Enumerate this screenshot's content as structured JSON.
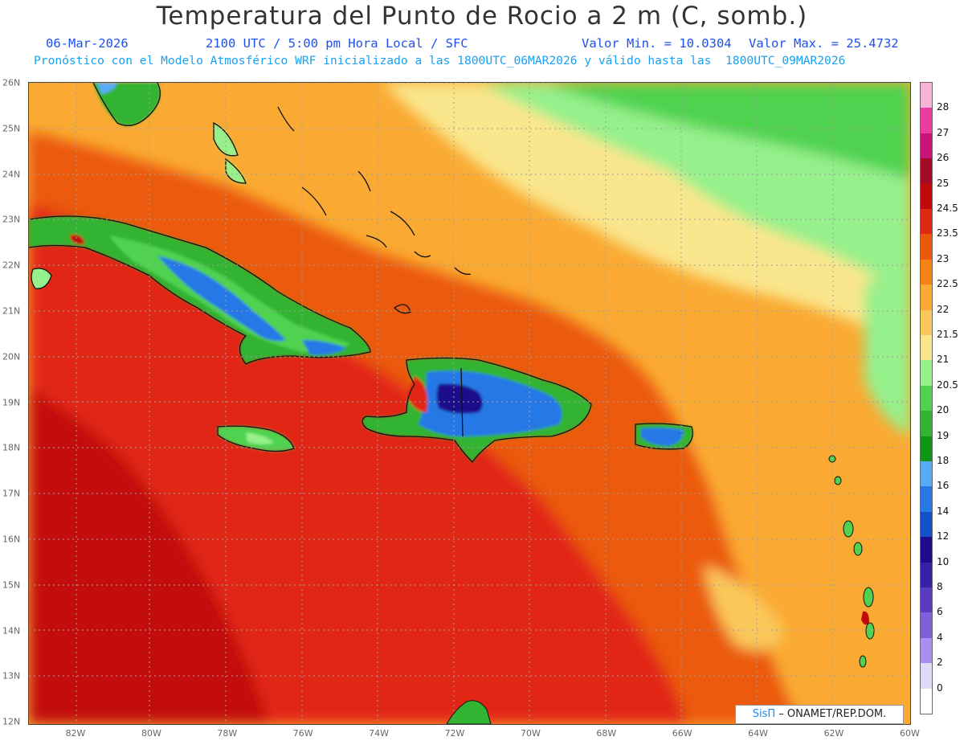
{
  "header": {
    "title": "Temperatura del Punto de Rocio a 2 m (C, somb.)",
    "date": "06-Mar-2026",
    "time_info": "2100 UTC / 5:00 pm Hora Local / SFC",
    "min_value": "Valor Min. = 10.0304",
    "max_value": "Valor Max. = 25.4732",
    "forecast_info": "Pronóstico con el Modelo Atmosférico WRF inicializado a las 1800UTC_06MAR2026 y válido hasta las  1800UTC_09MAR2026"
  },
  "colorbar": {
    "labels": [
      "0",
      "2",
      "4",
      "6",
      "8",
      "10",
      "12",
      "14",
      "16",
      "18",
      "19",
      "20",
      "20.5",
      "21",
      "21.5",
      "22",
      "22.5",
      "23",
      "23.5",
      "24.5",
      "25",
      "26",
      "27",
      "28"
    ],
    "colors": [
      "#ffffff",
      "#dcdcf8",
      "#a890f0",
      "#8060d8",
      "#5a3cc0",
      "#3820a8",
      "#1e0a8c",
      "#1450c8",
      "#2878e6",
      "#5aaaf5",
      "#0f9619",
      "#32b432",
      "#50d250",
      "#96f08c",
      "#fae68c",
      "#fac85a",
      "#faaa32",
      "#f58214",
      "#eb5a0a",
      "#e12814",
      "#c30a0a",
      "#a50a28",
      "#c81478",
      "#ec3ca0",
      "#f5b4d7"
    ]
  },
  "axes": {
    "lat_labels": [
      "26N",
      "25N",
      "24N",
      "23N",
      "22N",
      "21N",
      "20N",
      "19N",
      "18N",
      "17N",
      "16N",
      "15N",
      "14N",
      "13N",
      "12N"
    ],
    "lon_labels": [
      "82W",
      "80W",
      "78W",
      "76W",
      "74W",
      "72W",
      "70W",
      "68W",
      "66W",
      "64W",
      "62W",
      "60W"
    ]
  },
  "credit": {
    "sis": "SisΠ",
    "org": " – ONAMET/REP.DOM."
  }
}
